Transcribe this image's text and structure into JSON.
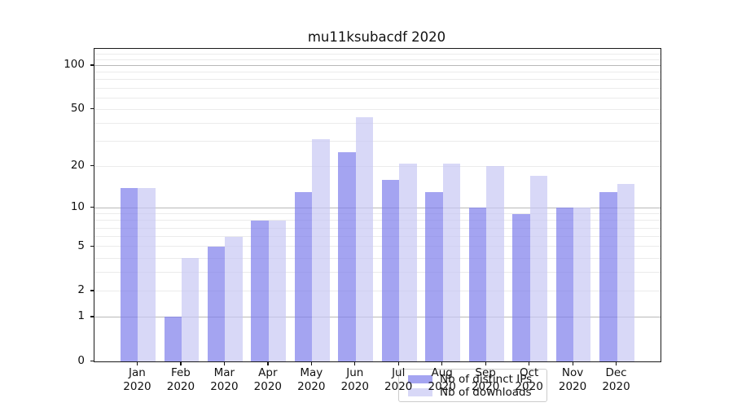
{
  "chart_data": {
    "type": "bar",
    "title": "mu11ksubacdf 2020",
    "categories": [
      "Jan",
      "Feb",
      "Mar",
      "Apr",
      "May",
      "Jun",
      "Jul",
      "Aug",
      "Sep",
      "Oct",
      "Nov",
      "Dec"
    ],
    "category_year": "2020",
    "series": [
      {
        "name": "Nb of distinct IPs",
        "color": "rgba(125,125,235,0.7)",
        "solid_color": "#a4a4f1",
        "values": [
          14,
          1,
          5,
          8,
          13,
          25,
          16,
          13,
          10,
          9,
          10,
          13
        ]
      },
      {
        "name": "Nb of downloads",
        "color": "rgba(199,199,244,0.7)",
        "solid_color": "#d8d8f7",
        "values": [
          14,
          4,
          6,
          8,
          31,
          44,
          21,
          21,
          20,
          17,
          10,
          15
        ]
      }
    ],
    "y_scale": "log10(1+x)",
    "ylim": [
      0,
      130
    ],
    "y_tick_labels": [
      "100",
      "50",
      "20",
      "10",
      "5",
      "2",
      "1",
      "0"
    ],
    "y_tick_values": [
      100,
      50,
      20,
      10,
      5,
      2,
      1,
      0
    ],
    "y_major_gridlines": [
      1,
      10,
      100
    ],
    "y_minor_gridlines": [
      2,
      3,
      4,
      5,
      6,
      7,
      8,
      9,
      20,
      30,
      40,
      50,
      60,
      70,
      80,
      90,
      110,
      120
    ],
    "grid": "on",
    "legend_position": "lower center inside plot",
    "style": {
      "grid_minor_color": "#ebebeb",
      "grid_major_color": "#b8b8b8",
      "axis_color": "#1a1a1a",
      "background": "#ffffff"
    }
  }
}
